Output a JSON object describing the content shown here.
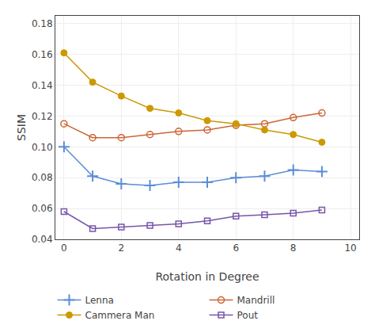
{
  "chart_data": {
    "type": "line",
    "xlabel": "Rotation in Degree",
    "ylabel": "SSIM",
    "x": [
      0,
      1,
      2,
      3,
      4,
      5,
      6,
      7,
      8,
      9
    ],
    "series": [
      {
        "name": "Lenna",
        "color": "#5b8dd9",
        "marker": "plus",
        "values": [
          0.1,
          0.081,
          0.076,
          0.075,
          0.077,
          0.077,
          0.08,
          0.081,
          0.085,
          0.084
        ]
      },
      {
        "name": "Mandrill",
        "color": "#cc6633",
        "marker": "circle-open",
        "values": [
          0.115,
          0.106,
          0.106,
          0.108,
          0.11,
          0.111,
          0.114,
          0.115,
          0.119,
          0.122
        ]
      },
      {
        "name": "Cammera Man",
        "color": "#cc9900",
        "marker": "circle",
        "values": [
          0.161,
          0.142,
          0.133,
          0.125,
          0.122,
          0.117,
          0.115,
          0.111,
          0.108,
          0.103
        ]
      },
      {
        "name": "Pout",
        "color": "#7755aa",
        "marker": "square-open",
        "values": [
          0.058,
          0.047,
          0.048,
          0.049,
          0.05,
          0.052,
          0.055,
          0.056,
          0.057,
          0.059
        ]
      }
    ],
    "xlim": [
      -0.3,
      10.3
    ],
    "ylim": [
      0.04,
      0.185
    ],
    "xticks": [
      0,
      2,
      4,
      6,
      8,
      10
    ],
    "yticks": [
      0.04,
      0.06,
      0.08,
      {
        "value": 0.1,
        "label": "0.10"
      },
      0.12,
      0.14,
      0.16,
      0.18
    ],
    "grid": true,
    "legend": "bottom"
  }
}
